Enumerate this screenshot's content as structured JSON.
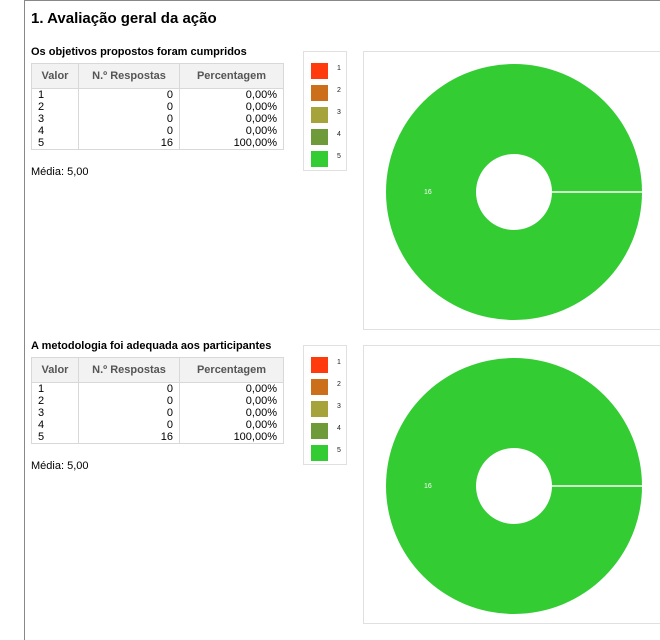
{
  "section": {
    "title": "1. Avaliação geral da ação"
  },
  "questions": [
    {
      "title": "Os objetivos propostos foram cumpridos",
      "table": {
        "headers": [
          "Valor",
          "N.º Respostas",
          "Percentagem"
        ],
        "rows": [
          [
            "1",
            "0",
            "0,00%"
          ],
          [
            "2",
            "0",
            "0,00%"
          ],
          [
            "3",
            "0",
            "0,00%"
          ],
          [
            "4",
            "0",
            "0,00%"
          ],
          [
            "5",
            "16",
            "100,00%"
          ]
        ]
      },
      "media": "Média: 5,00",
      "legend": [
        {
          "label": "1",
          "color": "#ff3a0d"
        },
        {
          "label": "2",
          "color": "#cc6f1a"
        },
        {
          "label": "3",
          "color": "#a5a33a"
        },
        {
          "label": "4",
          "color": "#6f9a3a"
        },
        {
          "label": "5",
          "color": "#33cc33"
        }
      ]
    },
    {
      "title": "A metodologia foi adequada aos participantes",
      "table": {
        "headers": [
          "Valor",
          "N.º Respostas",
          "Percentagem"
        ],
        "rows": [
          [
            "1",
            "0",
            "0,00%"
          ],
          [
            "2",
            "0",
            "0,00%"
          ],
          [
            "3",
            "0",
            "0,00%"
          ],
          [
            "4",
            "0",
            "0,00%"
          ],
          [
            "5",
            "16",
            "100,00%"
          ]
        ]
      },
      "media": "Média: 5,00",
      "legend": [
        {
          "label": "1",
          "color": "#ff3a0d"
        },
        {
          "label": "2",
          "color": "#cc6f1a"
        },
        {
          "label": "3",
          "color": "#a5a33a"
        },
        {
          "label": "4",
          "color": "#6f9a3a"
        },
        {
          "label": "5",
          "color": "#33cc33"
        }
      ]
    }
  ],
  "chart_data": [
    {
      "type": "pie",
      "donut": true,
      "categories": [
        "1",
        "2",
        "3",
        "4",
        "5"
      ],
      "values": [
        0,
        0,
        0,
        0,
        16
      ],
      "colors": [
        "#ff3a0d",
        "#cc6f1a",
        "#a5a33a",
        "#6f9a3a",
        "#33cc33"
      ],
      "data_labels": [
        "",
        "",
        "",
        "",
        "16"
      ],
      "legend": "left"
    },
    {
      "type": "pie",
      "donut": true,
      "categories": [
        "1",
        "2",
        "3",
        "4",
        "5"
      ],
      "values": [
        0,
        0,
        0,
        0,
        16
      ],
      "colors": [
        "#ff3a0d",
        "#cc6f1a",
        "#a5a33a",
        "#6f9a3a",
        "#33cc33"
      ],
      "data_labels": [
        "",
        "",
        "",
        "",
        "16"
      ],
      "legend": "left"
    }
  ]
}
